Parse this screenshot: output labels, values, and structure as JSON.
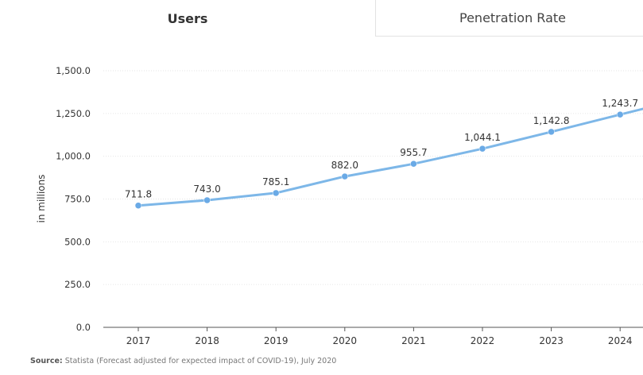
{
  "tabs": {
    "users": "Users",
    "penetration": "Penetration Rate"
  },
  "source": {
    "label": "Source:",
    "text": "Statista (Forecast adjusted for expected impact of COVID-19), July 2020"
  },
  "colors": {
    "line": "#7db7e8",
    "point": "#6aaae6",
    "grid": "#e6e6e6",
    "axis": "#555555",
    "text": "#333333"
  },
  "chart_data": {
    "type": "line",
    "title": "",
    "xlabel": "",
    "ylabel": "in millions",
    "categories": [
      "2017",
      "2018",
      "2019",
      "2020",
      "2021",
      "2022",
      "2023",
      "2024"
    ],
    "values": [
      711.8,
      743.0,
      785.1,
      882.0,
      955.7,
      1044.1,
      1142.8,
      1243.7
    ],
    "value_labels": [
      "711.8",
      "743.0",
      "785.1",
      "882.0",
      "955.7",
      "1,044.1",
      "1,142.8",
      "1,243.7"
    ],
    "ylim": [
      0,
      1500
    ],
    "yticks": [
      "0.0",
      "250.0",
      "500.0",
      "750.0",
      "1,000.0",
      "1,250.0",
      "1,500.0"
    ],
    "ytick_values": [
      0,
      250,
      500,
      750,
      1000,
      1250,
      1500
    ],
    "grid": true,
    "legend": "none"
  }
}
